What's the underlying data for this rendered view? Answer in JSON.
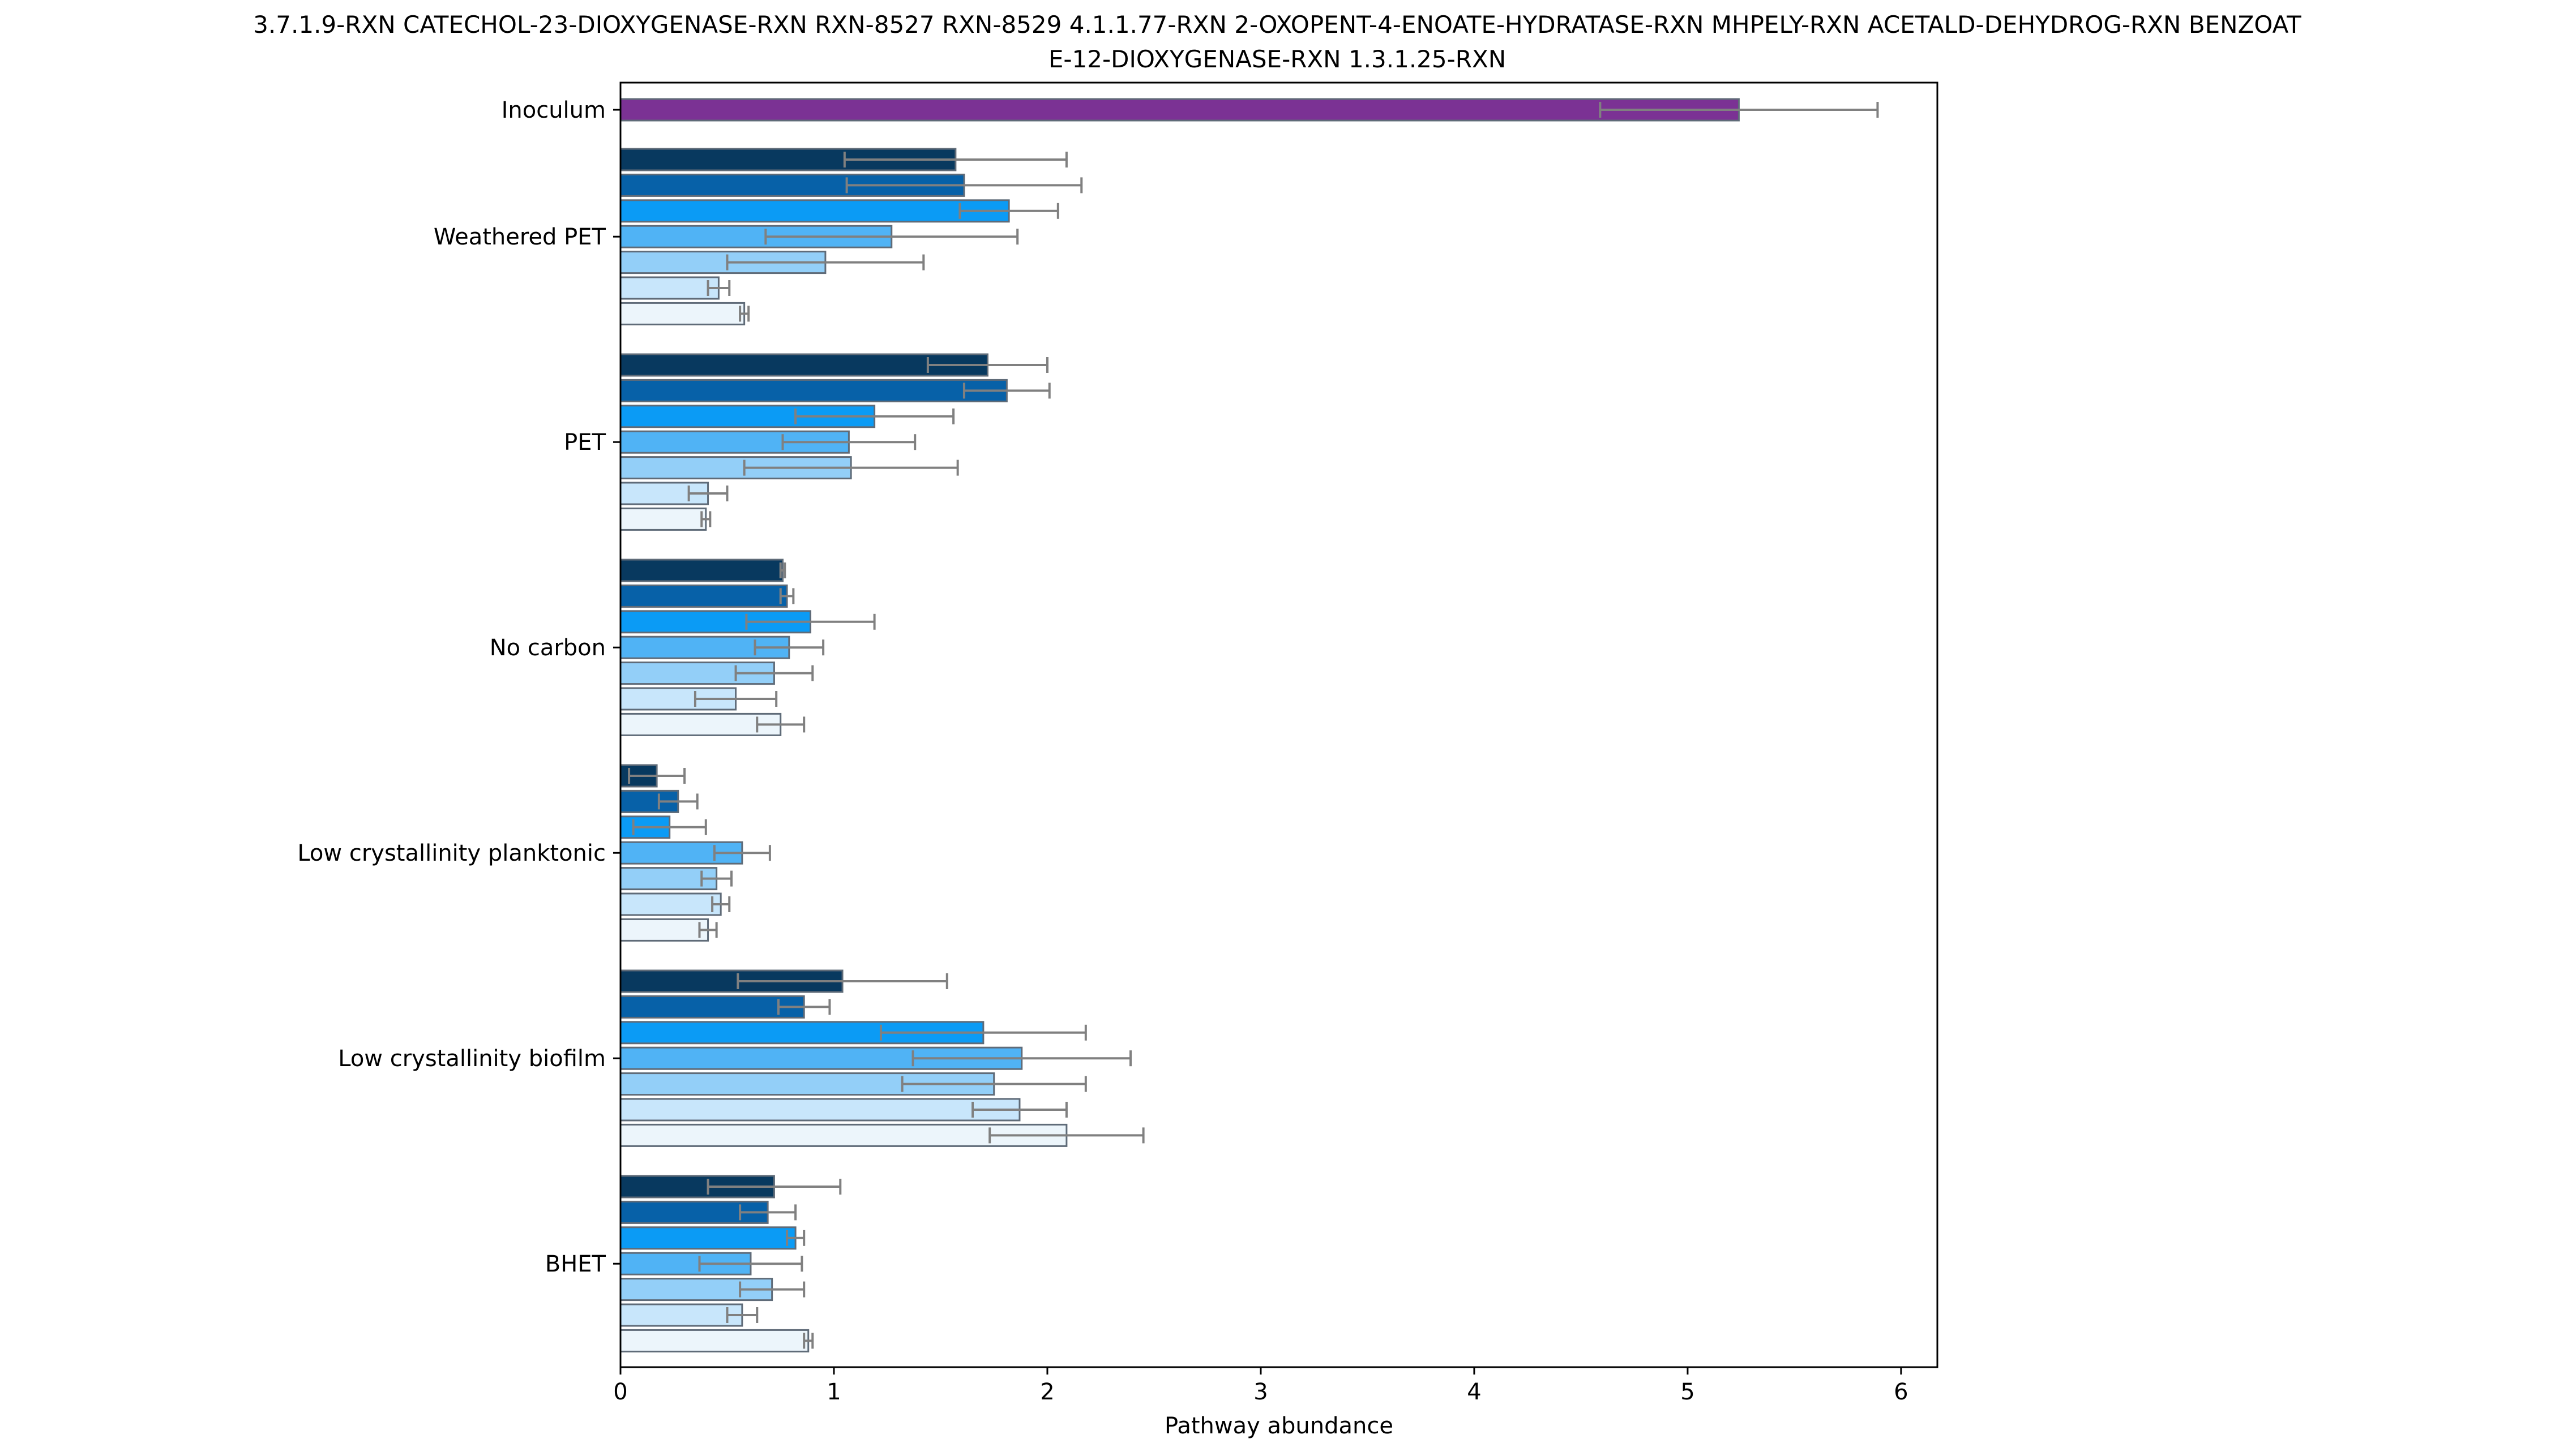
{
  "chart_data": {
    "type": "bar",
    "orientation": "horizontal",
    "title": "3.7.1.9-RXN   CATECHOL-23-DIOXYGENASE-RXN RXN-8527 RXN-8529 4.1.1.77-RXN  2-OXOPENT-4-ENOATE-HYDRATASE-RXN MHPELY-RXN ACETALD-DEHYDROG-RXN  BENZOATE-12-DIOXYGENASE-RXN 1.3.1.25-RXN",
    "title_lines": [
      "3.7.1.9-RXN   CATECHOL-23-DIOXYGENASE-RXN RXN-8527 RXN-8529 4.1.1.77-RXN  2-OXOPENT-4-ENOATE-HYDRATASE-RXN MHPELY-RXN ACETALD-DEHYDROG-RXN  BENZOAT",
      "E-12-DIOXYGENASE-RXN 1.3.1.25-RXN"
    ],
    "xlabel": "Pathway abundance",
    "ylabel": "",
    "xlim": [
      0,
      6.17
    ],
    "xticks": [
      0,
      1,
      2,
      3,
      4,
      5,
      6
    ],
    "grid": false,
    "legend": "none",
    "categories": [
      "Inoculum",
      "Weathered PET",
      "PET",
      "No carbon",
      "Low crystallinity planktonic",
      "Low crystallinity biofilm",
      "BHET"
    ],
    "series_colors": [
      "#08395f",
      "#0761a8",
      "#0b9bf5",
      "#50b3f5",
      "#93cff8",
      "#c8e6fb",
      "#ecf5fb"
    ],
    "inoculum_color": "#7b3294",
    "bar_edge_color": "#5f6b78",
    "errorbar_color": "#808080",
    "groups": [
      {
        "category": "Inoculum",
        "values": [
          5.24
        ],
        "errors": [
          0.65
        ]
      },
      {
        "category": "Weathered PET",
        "values": [
          1.57,
          1.61,
          1.82,
          1.27,
          0.96,
          0.46,
          0.58
        ],
        "errors": [
          0.52,
          0.55,
          0.23,
          0.59,
          0.46,
          0.05,
          0.02
        ]
      },
      {
        "category": "PET",
        "values": [
          1.72,
          1.81,
          1.19,
          1.07,
          1.08,
          0.41,
          0.4
        ],
        "errors": [
          0.28,
          0.2,
          0.37,
          0.31,
          0.5,
          0.09,
          0.02
        ]
      },
      {
        "category": "No carbon",
        "values": [
          0.76,
          0.78,
          0.89,
          0.79,
          0.72,
          0.54,
          0.75
        ],
        "errors": [
          0.01,
          0.03,
          0.3,
          0.16,
          0.18,
          0.19,
          0.11
        ]
      },
      {
        "category": "Low crystallinity planktonic",
        "values": [
          0.17,
          0.27,
          0.23,
          0.57,
          0.45,
          0.47,
          0.41
        ],
        "errors": [
          0.13,
          0.09,
          0.17,
          0.13,
          0.07,
          0.04,
          0.04
        ]
      },
      {
        "category": "Low crystallinity biofilm",
        "values": [
          1.04,
          0.86,
          1.7,
          1.88,
          1.75,
          1.87,
          2.09
        ],
        "errors": [
          0.49,
          0.12,
          0.48,
          0.51,
          0.43,
          0.22,
          0.36
        ]
      },
      {
        "category": "BHET",
        "values": [
          0.72,
          0.69,
          0.82,
          0.61,
          0.71,
          0.57,
          0.88
        ],
        "errors": [
          0.31,
          0.13,
          0.04,
          0.24,
          0.15,
          0.07,
          0.02
        ]
      }
    ]
  }
}
